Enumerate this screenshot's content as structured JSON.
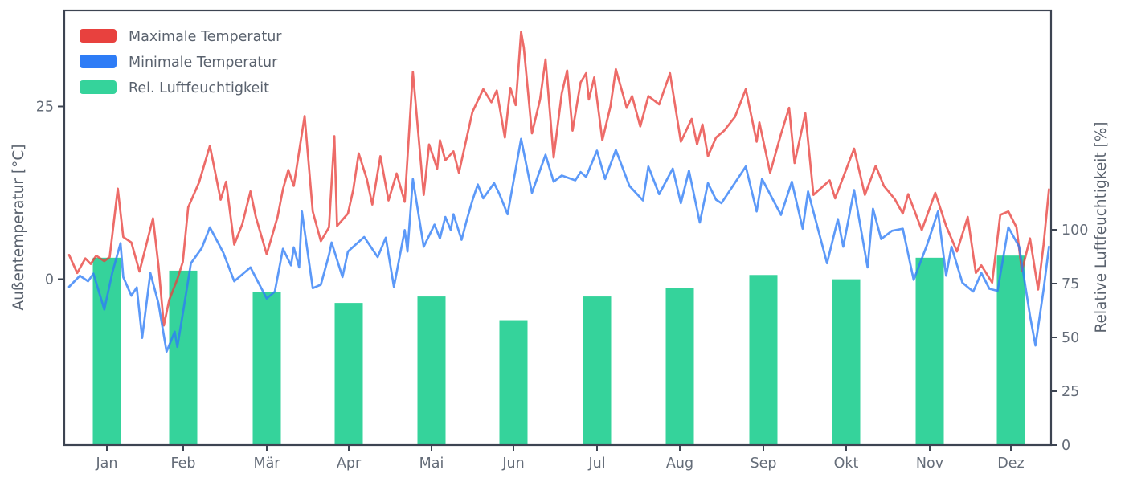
{
  "chart": {
    "legend": {
      "items": [
        {
          "label": "Maximale Temperatur",
          "color": "#e8413e"
        },
        {
          "label": "Minimale Temperatur",
          "color": "#2e7cf6"
        },
        {
          "label": "Rel. Luftfeuchtigkeit",
          "color": "#35d39b"
        }
      ]
    },
    "colors": {
      "spine": "#3d4452",
      "tick_label": "#646c78",
      "axis_label": "#5a626e",
      "tmax": "#e8413e",
      "tmin": "#2e7cf6",
      "humidity": "#35d39b",
      "background": "#ffffff"
    }
  },
  "chart_data": {
    "type": "line+bar",
    "title": "",
    "x_axis": {
      "tick_labels": [
        "Jan",
        "Feb",
        "Mär",
        "Apr",
        "Mai",
        "Jun",
        "Jul",
        "Aug",
        "Sep",
        "Okt",
        "Nov",
        "Dez"
      ],
      "unit": "day-of-year 1..365"
    },
    "y_left": {
      "label": "Außentemperatur [°C]",
      "ticks": [
        0,
        25
      ],
      "range": [
        -24,
        39.5
      ]
    },
    "y_right": {
      "label": "Relative Luftfeuchtigkeit [%]",
      "ticks": [
        0,
        25,
        50,
        75,
        100
      ],
      "range": [
        0,
        202
      ]
    },
    "grid": false,
    "legend_position": "upper left",
    "series": [
      {
        "name": "Maximale Temperatur",
        "type": "line",
        "axis": "left",
        "unit": "°C",
        "color": "#e8413e",
        "points": [
          [
            1,
            3.5
          ],
          [
            4,
            0.9
          ],
          [
            7,
            3.0
          ],
          [
            9,
            2.2
          ],
          [
            11,
            3.4
          ],
          [
            14,
            2.6
          ],
          [
            16,
            3.2
          ],
          [
            19,
            13.1
          ],
          [
            21,
            6.1
          ],
          [
            24,
            5.3
          ],
          [
            27,
            1.1
          ],
          [
            32,
            8.8
          ],
          [
            34,
            2.0
          ],
          [
            36,
            -6.7
          ],
          [
            38,
            -3.0
          ],
          [
            41,
            0.0
          ],
          [
            43,
            2.5
          ],
          [
            45,
            10.4
          ],
          [
            49,
            14.0
          ],
          [
            53,
            19.3
          ],
          [
            57,
            11.5
          ],
          [
            59,
            14.1
          ],
          [
            62,
            5.0
          ],
          [
            65,
            8.0
          ],
          [
            68,
            12.7
          ],
          [
            70,
            9.0
          ],
          [
            74,
            3.6
          ],
          [
            78,
            9.0
          ],
          [
            80,
            13.0
          ],
          [
            82,
            15.8
          ],
          [
            84,
            13.5
          ],
          [
            88,
            23.6
          ],
          [
            91,
            9.8
          ],
          [
            94,
            5.5
          ],
          [
            97,
            7.5
          ],
          [
            99,
            20.7
          ],
          [
            100,
            7.7
          ],
          [
            104,
            9.5
          ],
          [
            106,
            13.0
          ],
          [
            108,
            18.2
          ],
          [
            111,
            14.5
          ],
          [
            113,
            10.8
          ],
          [
            116,
            17.8
          ],
          [
            119,
            11.4
          ],
          [
            122,
            15.3
          ],
          [
            125,
            11.2
          ],
          [
            128,
            30.0
          ],
          [
            132,
            12.2
          ],
          [
            134,
            19.5
          ],
          [
            137,
            16.0
          ],
          [
            138,
            20.1
          ],
          [
            140,
            17.2
          ],
          [
            143,
            18.5
          ],
          [
            145,
            15.4
          ],
          [
            150,
            24.2
          ],
          [
            154,
            27.5
          ],
          [
            157,
            25.6
          ],
          [
            159,
            27.3
          ],
          [
            162,
            20.5
          ],
          [
            164,
            27.7
          ],
          [
            166,
            25.2
          ],
          [
            168,
            35.8
          ],
          [
            169,
            33.5
          ],
          [
            172,
            21.1
          ],
          [
            175,
            26.0
          ],
          [
            177,
            31.8
          ],
          [
            180,
            17.6
          ],
          [
            183,
            26.9
          ],
          [
            185,
            30.2
          ],
          [
            187,
            21.5
          ],
          [
            190,
            28.5
          ],
          [
            192,
            29.8
          ],
          [
            193,
            26.0
          ],
          [
            195,
            29.2
          ],
          [
            198,
            20.1
          ],
          [
            201,
            25.0
          ],
          [
            203,
            30.4
          ],
          [
            207,
            24.8
          ],
          [
            209,
            26.5
          ],
          [
            212,
            22.1
          ],
          [
            215,
            26.5
          ],
          [
            219,
            25.3
          ],
          [
            223,
            29.8
          ],
          [
            227,
            19.9
          ],
          [
            231,
            23.2
          ],
          [
            233,
            19.5
          ],
          [
            235,
            22.4
          ],
          [
            237,
            17.8
          ],
          [
            240,
            20.5
          ],
          [
            243,
            21.5
          ],
          [
            247,
            23.5
          ],
          [
            251,
            27.5
          ],
          [
            255,
            19.9
          ],
          [
            256,
            22.7
          ],
          [
            260,
            15.4
          ],
          [
            264,
            21.0
          ],
          [
            267,
            24.8
          ],
          [
            269,
            16.8
          ],
          [
            273,
            24.0
          ],
          [
            276,
            12.2
          ],
          [
            282,
            14.3
          ],
          [
            284,
            11.7
          ],
          [
            291,
            18.9
          ],
          [
            295,
            12.2
          ],
          [
            299,
            16.4
          ],
          [
            302,
            13.5
          ],
          [
            306,
            11.6
          ],
          [
            309,
            9.5
          ],
          [
            311,
            12.3
          ],
          [
            316,
            7.1
          ],
          [
            321,
            12.5
          ],
          [
            325,
            7.7
          ],
          [
            329,
            4.0
          ],
          [
            333,
            9.0
          ],
          [
            336,
            0.9
          ],
          [
            338,
            2.0
          ],
          [
            342,
            -0.5
          ],
          [
            345,
            9.3
          ],
          [
            348,
            9.8
          ],
          [
            351,
            7.5
          ],
          [
            353,
            1.2
          ],
          [
            356,
            5.9
          ],
          [
            359,
            -1.5
          ],
          [
            361,
            5.0
          ],
          [
            363,
            13.0
          ]
        ]
      },
      {
        "name": "Minimale Temperatur",
        "type": "line",
        "axis": "left",
        "unit": "°C",
        "color": "#2e7cf6",
        "points": [
          [
            1,
            -1.1
          ],
          [
            5,
            0.5
          ],
          [
            8,
            -0.3
          ],
          [
            10,
            0.8
          ],
          [
            14,
            -4.4
          ],
          [
            17,
            1.0
          ],
          [
            20,
            5.2
          ],
          [
            21,
            0.3
          ],
          [
            24,
            -2.4
          ],
          [
            26,
            -1.2
          ],
          [
            28,
            -8.5
          ],
          [
            31,
            0.9
          ],
          [
            34,
            -3.5
          ],
          [
            37,
            -10.5
          ],
          [
            40,
            -7.6
          ],
          [
            41,
            -9.8
          ],
          [
            43,
            -5.0
          ],
          [
            46,
            2.3
          ],
          [
            50,
            4.5
          ],
          [
            53,
            7.5
          ],
          [
            58,
            3.8
          ],
          [
            62,
            -0.3
          ],
          [
            68,
            1.7
          ],
          [
            74,
            -2.8
          ],
          [
            77,
            -1.8
          ],
          [
            80,
            4.4
          ],
          [
            83,
            2.0
          ],
          [
            84,
            4.6
          ],
          [
            86,
            1.7
          ],
          [
            87,
            9.8
          ],
          [
            91,
            -1.3
          ],
          [
            94,
            -0.8
          ],
          [
            97,
            3.5
          ],
          [
            98,
            5.3
          ],
          [
            102,
            0.3
          ],
          [
            104,
            4.0
          ],
          [
            110,
            6.1
          ],
          [
            115,
            3.2
          ],
          [
            118,
            6.0
          ],
          [
            121,
            -1.1
          ],
          [
            125,
            7.1
          ],
          [
            126,
            4.0
          ],
          [
            128,
            14.5
          ],
          [
            132,
            4.7
          ],
          [
            136,
            7.9
          ],
          [
            138,
            5.9
          ],
          [
            140,
            9.0
          ],
          [
            142,
            7.1
          ],
          [
            143,
            9.4
          ],
          [
            146,
            5.7
          ],
          [
            148,
            8.7
          ],
          [
            150,
            11.4
          ],
          [
            152,
            13.7
          ],
          [
            154,
            11.7
          ],
          [
            158,
            13.9
          ],
          [
            160,
            12.3
          ],
          [
            163,
            9.4
          ],
          [
            168,
            20.3
          ],
          [
            172,
            12.5
          ],
          [
            177,
            18.0
          ],
          [
            180,
            14.1
          ],
          [
            183,
            15.0
          ],
          [
            188,
            14.3
          ],
          [
            190,
            15.5
          ],
          [
            192,
            14.8
          ],
          [
            196,
            18.6
          ],
          [
            199,
            14.5
          ],
          [
            203,
            18.7
          ],
          [
            208,
            13.5
          ],
          [
            213,
            11.4
          ],
          [
            215,
            16.3
          ],
          [
            219,
            12.3
          ],
          [
            224,
            16.0
          ],
          [
            227,
            11.0
          ],
          [
            230,
            15.7
          ],
          [
            234,
            8.2
          ],
          [
            237,
            13.9
          ],
          [
            240,
            11.5
          ],
          [
            242,
            11.0
          ],
          [
            251,
            16.3
          ],
          [
            255,
            9.8
          ],
          [
            257,
            14.5
          ],
          [
            264,
            9.3
          ],
          [
            268,
            14.1
          ],
          [
            272,
            7.3
          ],
          [
            274,
            12.7
          ],
          [
            281,
            2.3
          ],
          [
            285,
            8.7
          ],
          [
            287,
            4.7
          ],
          [
            291,
            12.9
          ],
          [
            296,
            1.7
          ],
          [
            298,
            10.2
          ],
          [
            301,
            5.8
          ],
          [
            305,
            7.0
          ],
          [
            309,
            7.3
          ],
          [
            313,
            -0.1
          ],
          [
            318,
            5.0
          ],
          [
            322,
            9.8
          ],
          [
            325,
            0.5
          ],
          [
            327,
            4.7
          ],
          [
            331,
            -0.5
          ],
          [
            335,
            -1.8
          ],
          [
            338,
            0.9
          ],
          [
            341,
            -1.4
          ],
          [
            344,
            -1.7
          ],
          [
            348,
            7.5
          ],
          [
            352,
            4.7
          ],
          [
            356,
            -5.3
          ],
          [
            358,
            -9.6
          ],
          [
            361,
            -1.5
          ],
          [
            363,
            4.7
          ]
        ]
      },
      {
        "name": "Rel. Luftfeuchtigkeit",
        "type": "bar",
        "axis": "right",
        "unit": "%",
        "color": "#35d39b",
        "categories": [
          "Jan",
          "Feb",
          "Mär",
          "Apr",
          "Mai",
          "Jun",
          "Jul",
          "Aug",
          "Sep",
          "Okt",
          "Nov",
          "Dez"
        ],
        "values": [
          87,
          81,
          71,
          66,
          69,
          58,
          69,
          73,
          79,
          77,
          87,
          88
        ]
      }
    ]
  }
}
